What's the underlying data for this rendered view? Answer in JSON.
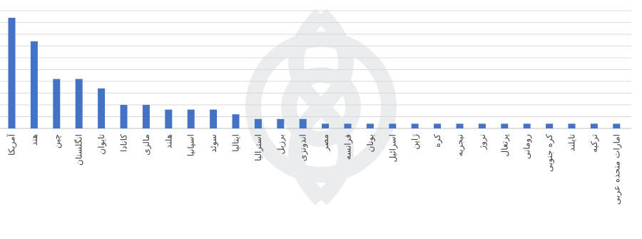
{
  "chart_data": {
    "type": "bar",
    "title": "",
    "xlabel": "",
    "ylabel": "",
    "ylim": [
      0,
      50
    ],
    "grid": true,
    "legend": "none",
    "bar_color": "#4472c4",
    "categories": [
      "آمریکا",
      "هند",
      "چین",
      "انگلستان",
      "تایوان",
      "کانادا",
      "مالزی",
      "هلند",
      "اسپانیا",
      "سوئد",
      "ایتالیا",
      "استرالیا",
      "برزیل",
      "اندونزی",
      "مصر",
      "فرانسه",
      "یونان",
      "اسرائیل",
      "ژاپن",
      "کره",
      "نیجریه",
      "نروژ",
      "پرتغال",
      "رومانی",
      "کره جنوبی",
      "تایلند",
      "ترکیه",
      "امارات متحده عربی"
    ],
    "values": [
      47,
      37,
      21,
      21,
      17,
      10,
      10,
      8,
      8,
      8,
      6,
      4,
      4,
      4,
      2,
      2,
      2,
      2,
      2,
      2,
      2,
      2,
      2,
      2,
      2,
      2,
      2,
      2
    ]
  }
}
